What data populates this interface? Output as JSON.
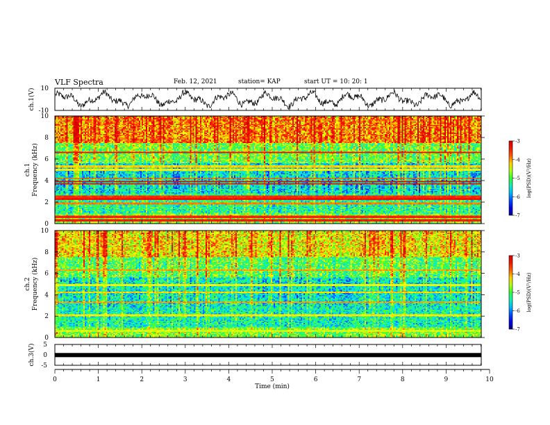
{
  "header": {
    "title": "VLF Spectra",
    "date": "Feb. 12, 2021",
    "station": "station= KAP",
    "start": "start  UT  =    10: 20: 1"
  },
  "chart_data": {
    "type": "heatmap",
    "title": "VLF Spectra",
    "x": {
      "label": "Time  (min)",
      "range": [
        0,
        10
      ],
      "ticks": [
        "0",
        "1",
        "2",
        "3",
        "4",
        "5",
        "6",
        "7",
        "8",
        "9",
        "10"
      ]
    },
    "panels": [
      {
        "name": "ch1_waveform",
        "type": "line",
        "ylabel": "ch.1(V)",
        "ylim": [
          -10,
          10
        ],
        "ticks": [
          "10",
          "-10"
        ]
      },
      {
        "name": "ch1_spectrogram",
        "type": "heatmap",
        "ylabel_top": "ch.1",
        "ylabel": "Frequency  (kHz)",
        "ylim": [
          0,
          10
        ],
        "ticks": [
          "0",
          "2",
          "4",
          "6",
          "8",
          "10"
        ],
        "colorbar": {
          "label": "log(PSD)(V²/Hz)",
          "range": [
            -7,
            -3
          ],
          "ticks": [
            "-3",
            "-4",
            "-5",
            "-6",
            "-7"
          ]
        },
        "bands": [
          {
            "freq_khz": 6.6,
            "level": -3.3
          },
          {
            "freq_khz": 5.3,
            "level": -4.2
          },
          {
            "freq_khz": 5.0,
            "level": -4.3
          },
          {
            "freq_khz": 4.2,
            "level": -3.8
          },
          {
            "freq_khz": 3.9,
            "level": -3.2
          },
          {
            "freq_khz": 3.7,
            "level": -3.1
          },
          {
            "freq_khz": 2.5,
            "level": -3.6
          },
          {
            "freq_khz": 2.3,
            "level": -3.3
          },
          {
            "freq_khz": 1.9,
            "level": -3.9
          },
          {
            "freq_khz": 0.6,
            "level": -3.5
          },
          {
            "freq_khz": 0.3,
            "level": -3.4
          }
        ]
      },
      {
        "name": "ch2_spectrogram",
        "type": "heatmap",
        "ylabel_top": "ch.2",
        "ylabel": "Frequency  (kHz)",
        "ylim": [
          0,
          10
        ],
        "ticks": [
          "0",
          "2",
          "4",
          "6",
          "8",
          "10"
        ],
        "colorbar": {
          "label": "log(PSD)(V²/Hz)",
          "range": [
            -7,
            -3
          ],
          "ticks": [
            "-3",
            "-4",
            "-5",
            "-6",
            "-7"
          ]
        },
        "bands": [
          {
            "freq_khz": 6.3,
            "level": -4.0
          },
          {
            "freq_khz": 4.9,
            "level": -4.4
          },
          {
            "freq_khz": 4.2,
            "level": -4.2
          },
          {
            "freq_khz": 3.3,
            "level": -4.0
          },
          {
            "freq_khz": 2.1,
            "level": -4.3
          },
          {
            "freq_khz": 0.6,
            "level": -4.5
          }
        ]
      },
      {
        "name": "ch3_waveform",
        "type": "line",
        "ylabel": "ch.3(V)",
        "ylim": [
          -5,
          5
        ],
        "ticks": [
          "5",
          "0",
          "-5"
        ],
        "level_v": -0.1,
        "data_end_min": 9.8
      }
    ],
    "grid": false
  }
}
